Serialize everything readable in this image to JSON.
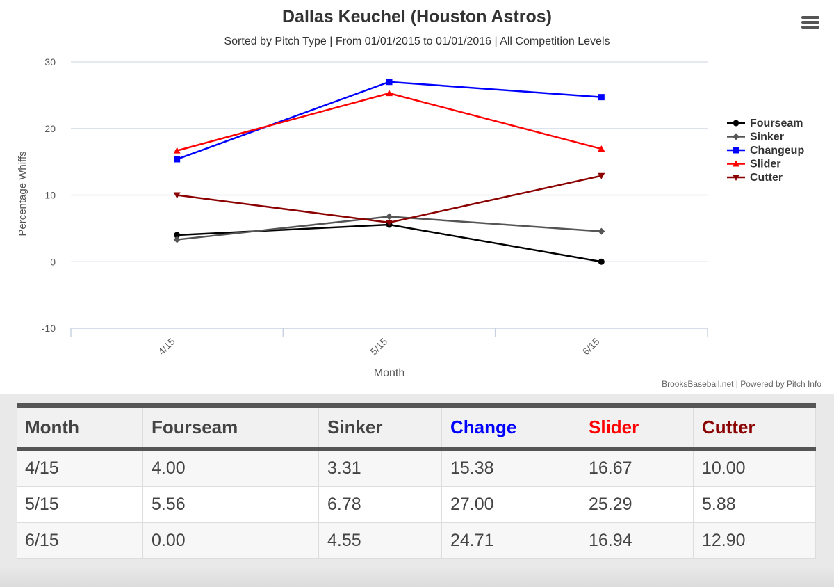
{
  "chart_data": {
    "type": "line",
    "title": "Dallas Keuchel (Houston Astros)",
    "subtitle": "Sorted by Pitch Type | From 01/01/2015 to 01/01/2016 | All Competition Levels",
    "xlabel": "Month",
    "ylabel": "Percentage Whiffs",
    "categories": [
      "4/15",
      "5/15",
      "6/15"
    ],
    "yticks": [
      -10,
      0,
      10,
      20,
      30
    ],
    "ylim": [
      -10,
      30
    ],
    "grid": true,
    "legend_position": "right",
    "series": [
      {
        "name": "Fourseam",
        "color": "#000000",
        "marker": "circle",
        "values": [
          4.0,
          5.56,
          0.0
        ]
      },
      {
        "name": "Sinker",
        "color": "#555555",
        "marker": "diamond",
        "values": [
          3.31,
          6.78,
          4.55
        ]
      },
      {
        "name": "Changeup",
        "color": "#0000ff",
        "marker": "square",
        "values": [
          15.38,
          27.0,
          24.71
        ]
      },
      {
        "name": "Slider",
        "color": "#ff0000",
        "marker": "triangle",
        "values": [
          16.67,
          25.29,
          16.94
        ]
      },
      {
        "name": "Cutter",
        "color": "#8b0000",
        "marker": "triangle-down",
        "values": [
          10.0,
          5.88,
          12.9
        ]
      }
    ],
    "credits": "BrooksBaseball.net | Powered by Pitch Info"
  },
  "menu_icon": "hamburger-menu-icon",
  "table": {
    "headers": [
      {
        "label": "Month",
        "color": "#444444"
      },
      {
        "label": "Fourseam",
        "color": "#444444"
      },
      {
        "label": "Sinker",
        "color": "#444444"
      },
      {
        "label": "Change",
        "color": "#0000ff"
      },
      {
        "label": "Slider",
        "color": "#ff0000"
      },
      {
        "label": "Cutter",
        "color": "#8b0000"
      }
    ],
    "rows": [
      [
        "4/15",
        "4.00",
        "3.31",
        "15.38",
        "16.67",
        "10.00"
      ],
      [
        "5/15",
        "5.56",
        "6.78",
        "27.00",
        "25.29",
        "5.88"
      ],
      [
        "6/15",
        "0.00",
        "4.55",
        "24.71",
        "16.94",
        "12.90"
      ]
    ]
  }
}
